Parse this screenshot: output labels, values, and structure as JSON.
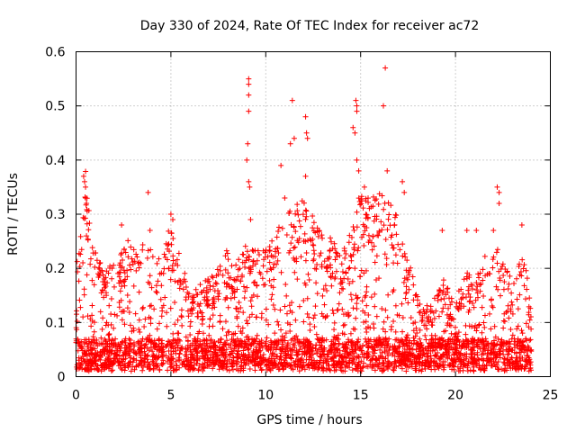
{
  "chart_data": {
    "type": "scatter",
    "title": "Day 330 of 2024, Rate Of TEC Index for receiver ac72",
    "xlabel": "GPS time / hours",
    "ylabel": "ROTI / TECUs",
    "xlim": [
      0,
      25
    ],
    "ylim": [
      0,
      0.6
    ],
    "x_ticks": [
      0,
      5,
      10,
      15,
      20,
      25
    ],
    "y_ticks": [
      0,
      0.1,
      0.2,
      0.3,
      0.4,
      0.5,
      0.6
    ],
    "x_tick_labels": [
      "0",
      "5",
      "10",
      "15",
      "20",
      "25"
    ],
    "y_tick_labels": [
      "0",
      "0.1",
      "0.2",
      "0.3",
      "0.4",
      "0.5",
      "0.6"
    ],
    "grid": true,
    "marker": "+",
    "marker_color": "#ff0000",
    "series": [
      {
        "name": "ROTI",
        "envelope": [
          {
            "x": 0.0,
            "y": 0.18
          },
          {
            "x": 0.5,
            "y": 0.37
          },
          {
            "x": 1.0,
            "y": 0.22
          },
          {
            "x": 1.5,
            "y": 0.18
          },
          {
            "x": 2.0,
            "y": 0.21
          },
          {
            "x": 2.5,
            "y": 0.23
          },
          {
            "x": 3.0,
            "y": 0.25
          },
          {
            "x": 3.5,
            "y": 0.23
          },
          {
            "x": 4.0,
            "y": 0.22
          },
          {
            "x": 4.5,
            "y": 0.19
          },
          {
            "x": 5.0,
            "y": 0.28
          },
          {
            "x": 5.5,
            "y": 0.2
          },
          {
            "x": 6.0,
            "y": 0.14
          },
          {
            "x": 6.5,
            "y": 0.15
          },
          {
            "x": 7.0,
            "y": 0.17
          },
          {
            "x": 7.5,
            "y": 0.19
          },
          {
            "x": 8.0,
            "y": 0.22
          },
          {
            "x": 8.5,
            "y": 0.2
          },
          {
            "x": 9.0,
            "y": 0.25
          },
          {
            "x": 9.5,
            "y": 0.23
          },
          {
            "x": 10.0,
            "y": 0.22
          },
          {
            "x": 10.5,
            "y": 0.25
          },
          {
            "x": 11.0,
            "y": 0.3
          },
          {
            "x": 11.5,
            "y": 0.31
          },
          {
            "x": 12.0,
            "y": 0.33
          },
          {
            "x": 12.5,
            "y": 0.28
          },
          {
            "x": 13.0,
            "y": 0.25
          },
          {
            "x": 13.5,
            "y": 0.24
          },
          {
            "x": 14.0,
            "y": 0.22
          },
          {
            "x": 14.5,
            "y": 0.25
          },
          {
            "x": 15.0,
            "y": 0.33
          },
          {
            "x": 15.5,
            "y": 0.31
          },
          {
            "x": 16.0,
            "y": 0.33
          },
          {
            "x": 16.5,
            "y": 0.31
          },
          {
            "x": 17.0,
            "y": 0.27
          },
          {
            "x": 17.5,
            "y": 0.2
          },
          {
            "x": 18.0,
            "y": 0.16
          },
          {
            "x": 18.5,
            "y": 0.12
          },
          {
            "x": 19.0,
            "y": 0.13
          },
          {
            "x": 19.5,
            "y": 0.17
          },
          {
            "x": 20.0,
            "y": 0.12
          },
          {
            "x": 20.5,
            "y": 0.19
          },
          {
            "x": 21.0,
            "y": 0.16
          },
          {
            "x": 21.5,
            "y": 0.2
          },
          {
            "x": 22.0,
            "y": 0.23
          },
          {
            "x": 22.5,
            "y": 0.2
          },
          {
            "x": 23.0,
            "y": 0.17
          },
          {
            "x": 23.5,
            "y": 0.22
          },
          {
            "x": 24.0,
            "y": 0.12
          }
        ],
        "spikes": [
          {
            "x": 0.4,
            "y": 0.37
          },
          {
            "x": 0.45,
            "y": 0.36
          },
          {
            "x": 0.5,
            "y": 0.35
          },
          {
            "x": 0.5,
            "y": 0.33
          },
          {
            "x": 0.55,
            "y": 0.32
          },
          {
            "x": 0.55,
            "y": 0.26
          },
          {
            "x": 2.4,
            "y": 0.28
          },
          {
            "x": 3.8,
            "y": 0.34
          },
          {
            "x": 3.9,
            "y": 0.27
          },
          {
            "x": 5.0,
            "y": 0.3
          },
          {
            "x": 5.1,
            "y": 0.29
          },
          {
            "x": 9.1,
            "y": 0.55
          },
          {
            "x": 9.1,
            "y": 0.54
          },
          {
            "x": 9.1,
            "y": 0.52
          },
          {
            "x": 9.1,
            "y": 0.49
          },
          {
            "x": 9.05,
            "y": 0.43
          },
          {
            "x": 9.0,
            "y": 0.4
          },
          {
            "x": 9.1,
            "y": 0.36
          },
          {
            "x": 9.15,
            "y": 0.35
          },
          {
            "x": 9.2,
            "y": 0.29
          },
          {
            "x": 10.8,
            "y": 0.39
          },
          {
            "x": 11.0,
            "y": 0.33
          },
          {
            "x": 11.3,
            "y": 0.43
          },
          {
            "x": 11.4,
            "y": 0.51
          },
          {
            "x": 11.5,
            "y": 0.44
          },
          {
            "x": 12.1,
            "y": 0.48
          },
          {
            "x": 12.15,
            "y": 0.45
          },
          {
            "x": 12.2,
            "y": 0.44
          },
          {
            "x": 12.1,
            "y": 0.37
          },
          {
            "x": 14.6,
            "y": 0.46
          },
          {
            "x": 14.75,
            "y": 0.51
          },
          {
            "x": 14.8,
            "y": 0.5
          },
          {
            "x": 14.8,
            "y": 0.49
          },
          {
            "x": 14.7,
            "y": 0.45
          },
          {
            "x": 14.8,
            "y": 0.4
          },
          {
            "x": 14.9,
            "y": 0.38
          },
          {
            "x": 15.2,
            "y": 0.35
          },
          {
            "x": 16.3,
            "y": 0.57
          },
          {
            "x": 16.2,
            "y": 0.5
          },
          {
            "x": 16.4,
            "y": 0.38
          },
          {
            "x": 17.2,
            "y": 0.36
          },
          {
            "x": 17.3,
            "y": 0.34
          },
          {
            "x": 19.3,
            "y": 0.27
          },
          {
            "x": 20.6,
            "y": 0.27
          },
          {
            "x": 21.1,
            "y": 0.27
          },
          {
            "x": 22.2,
            "y": 0.35
          },
          {
            "x": 22.3,
            "y": 0.34
          },
          {
            "x": 22.3,
            "y": 0.32
          },
          {
            "x": 22.0,
            "y": 0.27
          },
          {
            "x": 23.5,
            "y": 0.28
          }
        ]
      }
    ]
  }
}
